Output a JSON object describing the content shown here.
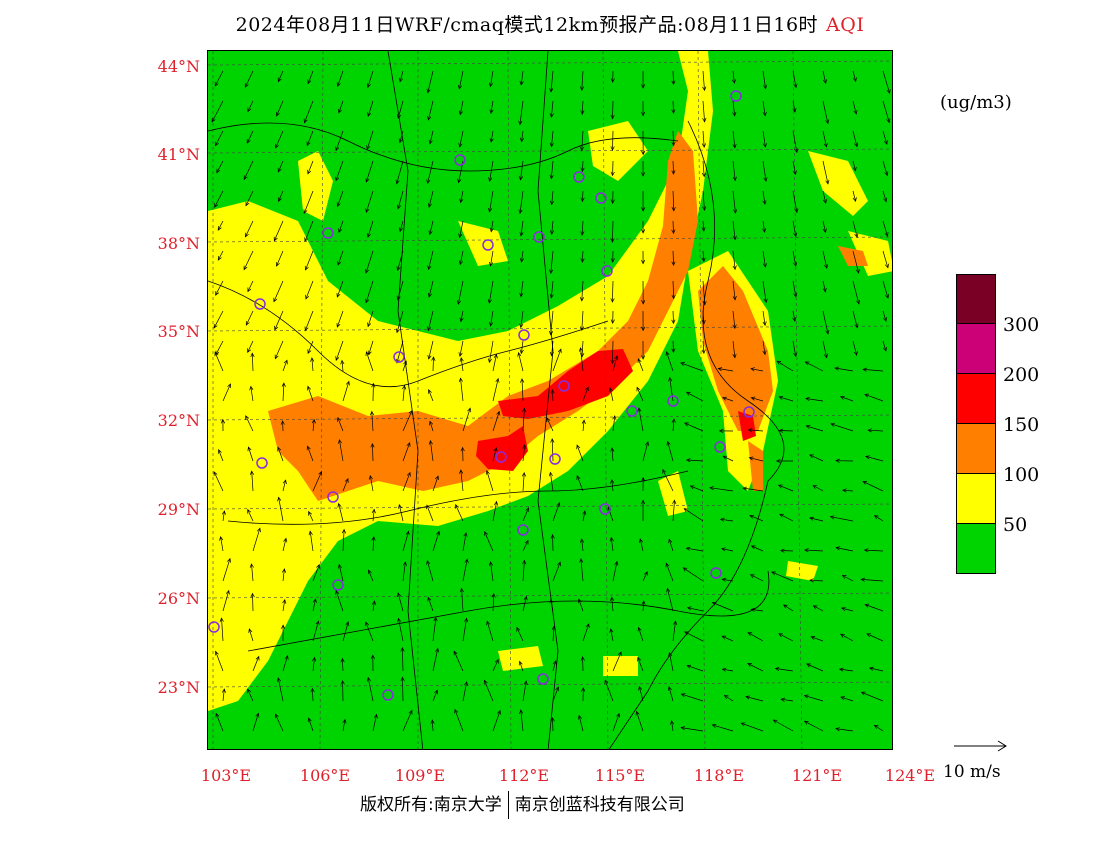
{
  "header": {
    "title": "2024年08月11日WRF/cmaq模式12km预报产品:08月11日16时",
    "variable": "AQI"
  },
  "map": {
    "unit_label": "(ug/m3)",
    "lat_labels": [
      "44°N",
      "41°N",
      "38°N",
      "35°N",
      "32°N",
      "29°N",
      "26°N",
      "23°N"
    ],
    "lon_labels": [
      "103°E",
      "106°E",
      "109°E",
      "112°E",
      "115°E",
      "118°E",
      "121°E",
      "124°E"
    ],
    "colors": {
      "aqi_0_50": "#00d400",
      "aqi_50_100": "#ffff00",
      "aqi_100_150": "#ff7f00",
      "aqi_150_200": "#ff0000",
      "aqi_200_300": "#cc0077",
      "aqi_300_plus": "#7a0025",
      "station_marker": "#8a2be2",
      "grid_label": "#e0202a"
    }
  },
  "legend": {
    "swatches": [
      {
        "color": "#7a0025"
      },
      {
        "color": "#cc0077"
      },
      {
        "color": "#ff0000"
      },
      {
        "color": "#ff7f00"
      },
      {
        "color": "#ffff00"
      },
      {
        "color": "#00d400"
      }
    ],
    "labels": [
      "300",
      "200",
      "150",
      "100",
      "50"
    ]
  },
  "wind_reference": {
    "label": "10 m/s"
  },
  "footer": {
    "copyright_left": "版权所有:南京大学",
    "copyright_right": "南京创蓝科技有限公司"
  }
}
